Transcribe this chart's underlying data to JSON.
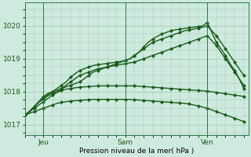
{
  "background_color": "#ceeade",
  "grid_color": "#a0c8b0",
  "line_color": "#1a5c1a",
  "xlabel": "Pression niveau de la mer( hPa )",
  "xlim": [
    0,
    49
  ],
  "ylim": [
    1016.7,
    1020.7
  ],
  "yticks": [
    1017,
    1018,
    1019,
    1020
  ],
  "xtick_positions": [
    4,
    22,
    40
  ],
  "xtick_labels": [
    "Jeu",
    "Sam",
    "Ven"
  ],
  "vlines": [
    4,
    22,
    40
  ],
  "series_x": [
    [
      0,
      1,
      2,
      3,
      4,
      5,
      6,
      7,
      8,
      9,
      10,
      11,
      12,
      13,
      14,
      15,
      16,
      17,
      18,
      19,
      20,
      21,
      22,
      23,
      24,
      25,
      26,
      27,
      28,
      29,
      30,
      31,
      32,
      33,
      34,
      35,
      36,
      37,
      38,
      39,
      40,
      41,
      42,
      43,
      44,
      45,
      46,
      47,
      48
    ],
    [
      0,
      1,
      2,
      3,
      4,
      5,
      6,
      7,
      8,
      9,
      10,
      11,
      12,
      13,
      14,
      15,
      16,
      17,
      18,
      19,
      20,
      21,
      22,
      23,
      24,
      25,
      26,
      27,
      28,
      29,
      30,
      31,
      32,
      33,
      34,
      35,
      36,
      37,
      38,
      39,
      40,
      41,
      42,
      43,
      44,
      45,
      46,
      47,
      48
    ],
    [
      0,
      1,
      2,
      3,
      4,
      5,
      6,
      7,
      8,
      9,
      10,
      11,
      12,
      13,
      14,
      15,
      16,
      17,
      18,
      19,
      20,
      21,
      22,
      23,
      24,
      25,
      26,
      27,
      28,
      29,
      30,
      31,
      32,
      33,
      34,
      35,
      36,
      37,
      38,
      39,
      40,
      41,
      42,
      43,
      44,
      45,
      46,
      47,
      48
    ],
    [
      0,
      1,
      2,
      3,
      4,
      5,
      6,
      7,
      8,
      9,
      10,
      11,
      12,
      13,
      14,
      15,
      16,
      17,
      18,
      19,
      20,
      21,
      22,
      23,
      24,
      25,
      26,
      27,
      28,
      29,
      30,
      31,
      32,
      33,
      34,
      35,
      36,
      37,
      38,
      39,
      40,
      41,
      42,
      43,
      44,
      45,
      46,
      47,
      48
    ],
    [
      0,
      1,
      2,
      3,
      4,
      5,
      6,
      7,
      8,
      9,
      10,
      11,
      12,
      13,
      14,
      15,
      16,
      17,
      18,
      19,
      20,
      21,
      22,
      23,
      24,
      25,
      26,
      27,
      28,
      29,
      30,
      31,
      32,
      33,
      34,
      35,
      36,
      37,
      38,
      39,
      40,
      41,
      42,
      43,
      44,
      45,
      46,
      47,
      48
    ]
  ],
  "series_y": [
    [
      1017.3,
      1017.4,
      1017.55,
      1017.7,
      1017.85,
      1017.95,
      1018.0,
      1018.05,
      1018.1,
      1018.15,
      1018.2,
      1018.25,
      1018.3,
      1018.4,
      1018.5,
      1018.6,
      1018.65,
      1018.7,
      1018.75,
      1018.8,
      1018.85,
      1018.9,
      1018.95,
      1019.0,
      1019.1,
      1019.2,
      1019.3,
      1019.4,
      1019.5,
      1019.55,
      1019.6,
      1019.65,
      1019.7,
      1019.75,
      1019.8,
      1019.85,
      1019.87,
      1019.9,
      1019.93,
      1019.96,
      1020.0,
      1019.85,
      1019.7,
      1019.5,
      1019.3,
      1019.1,
      1018.9,
      1018.7,
      1018.5
    ],
    [
      1017.3,
      1017.4,
      1017.55,
      1017.7,
      1017.82,
      1017.92,
      1018.0,
      1018.1,
      1018.2,
      1018.3,
      1018.45,
      1018.55,
      1018.65,
      1018.7,
      1018.75,
      1018.8,
      1018.82,
      1018.84,
      1018.86,
      1018.88,
      1018.9,
      1018.92,
      1018.95,
      1019.0,
      1019.1,
      1019.2,
      1019.35,
      1019.5,
      1019.6,
      1019.68,
      1019.75,
      1019.8,
      1019.85,
      1019.88,
      1019.9,
      1019.92,
      1019.94,
      1019.96,
      1019.98,
      1020.0,
      1020.1,
      1019.8,
      1019.5,
      1019.3,
      1019.1,
      1018.85,
      1018.65,
      1018.4,
      1018.1
    ],
    [
      1017.3,
      1017.42,
      1017.55,
      1017.68,
      1017.78,
      1017.88,
      1017.95,
      1018.0,
      1018.1,
      1018.2,
      1018.3,
      1018.4,
      1018.5,
      1018.55,
      1018.6,
      1018.65,
      1018.7,
      1018.72,
      1018.75,
      1018.78,
      1018.8,
      1018.83,
      1018.85,
      1018.88,
      1018.9,
      1018.95,
      1019.0,
      1019.05,
      1019.1,
      1019.15,
      1019.2,
      1019.25,
      1019.3,
      1019.35,
      1019.4,
      1019.45,
      1019.5,
      1019.55,
      1019.6,
      1019.65,
      1019.7,
      1019.55,
      1019.4,
      1019.2,
      1019.0,
      1018.8,
      1018.6,
      1018.4,
      1018.2
    ],
    [
      1017.3,
      1017.4,
      1017.5,
      1017.6,
      1017.7,
      1017.8,
      1017.9,
      1017.98,
      1018.04,
      1018.08,
      1018.1,
      1018.12,
      1018.14,
      1018.15,
      1018.16,
      1018.17,
      1018.18,
      1018.18,
      1018.18,
      1018.18,
      1018.18,
      1018.18,
      1018.18,
      1018.18,
      1018.18,
      1018.17,
      1018.16,
      1018.15,
      1018.14,
      1018.13,
      1018.12,
      1018.11,
      1018.1,
      1018.09,
      1018.08,
      1018.07,
      1018.06,
      1018.05,
      1018.04,
      1018.03,
      1018.02,
      1018.0,
      1017.98,
      1017.96,
      1017.94,
      1017.92,
      1017.9,
      1017.88,
      1017.86
    ],
    [
      1017.3,
      1017.35,
      1017.4,
      1017.45,
      1017.5,
      1017.55,
      1017.6,
      1017.65,
      1017.68,
      1017.7,
      1017.72,
      1017.73,
      1017.74,
      1017.75,
      1017.76,
      1017.77,
      1017.77,
      1017.77,
      1017.77,
      1017.77,
      1017.77,
      1017.77,
      1017.77,
      1017.77,
      1017.76,
      1017.75,
      1017.74,
      1017.73,
      1017.72,
      1017.71,
      1017.7,
      1017.69,
      1017.68,
      1017.67,
      1017.66,
      1017.65,
      1017.63,
      1017.6,
      1017.57,
      1017.54,
      1017.5,
      1017.45,
      1017.4,
      1017.35,
      1017.3,
      1017.25,
      1017.2,
      1017.15,
      1017.1
    ]
  ],
  "marker_every": 2
}
